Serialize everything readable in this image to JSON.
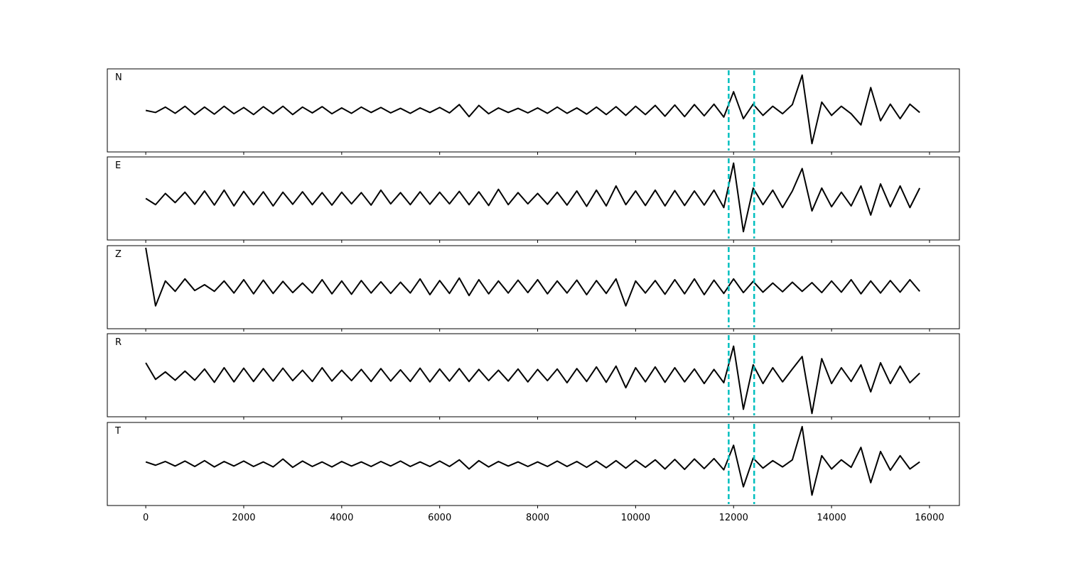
{
  "chart_data": {
    "type": "line",
    "layout": "stacked",
    "x": [
      0,
      200,
      400,
      600,
      800,
      1000,
      1200,
      1400,
      1600,
      1800,
      2000,
      2200,
      2400,
      2600,
      2800,
      3000,
      3200,
      3400,
      3600,
      3800,
      4000,
      4200,
      4400,
      4600,
      4800,
      5000,
      5200,
      5400,
      5600,
      5800,
      6000,
      6200,
      6400,
      6600,
      6800,
      7000,
      7200,
      7400,
      7600,
      7800,
      8000,
      8200,
      8400,
      8600,
      8800,
      9000,
      9200,
      9400,
      9600,
      9800,
      10000,
      10200,
      10400,
      10600,
      10800,
      11000,
      11200,
      11400,
      11600,
      11800,
      12000,
      12200,
      12400,
      12600,
      12800,
      13000,
      13200,
      13400,
      13600,
      13800,
      14000,
      14200,
      14400,
      14600,
      14800,
      15000,
      15200,
      15400,
      15600,
      15800
    ],
    "xlim": [
      -785,
      16610
    ],
    "xticks": [
      0,
      2000,
      4000,
      6000,
      8000,
      10000,
      12000,
      14000,
      16000
    ],
    "ylim": [
      -1,
      1
    ],
    "vlines": {
      "values": [
        11900,
        12420
      ],
      "color": "#00bfbf"
    },
    "series": [
      {
        "name": "N",
        "color": "#000000",
        "values": [
          0.0,
          -0.05,
          0.08,
          -0.07,
          0.1,
          -0.1,
          0.08,
          -0.09,
          0.1,
          -0.08,
          0.07,
          -0.1,
          0.09,
          -0.08,
          0.1,
          -0.1,
          0.08,
          -0.06,
          0.09,
          -0.08,
          0.06,
          -0.07,
          0.08,
          -0.05,
          0.07,
          -0.06,
          0.05,
          -0.07,
          0.06,
          -0.05,
          0.07,
          -0.06,
          0.14,
          -0.15,
          0.12,
          -0.08,
          0.06,
          -0.05,
          0.05,
          -0.06,
          0.06,
          -0.07,
          0.08,
          -0.07,
          0.06,
          -0.09,
          0.08,
          -0.1,
          0.09,
          -0.12,
          0.1,
          -0.1,
          0.12,
          -0.14,
          0.13,
          -0.15,
          0.14,
          -0.13,
          0.15,
          -0.16,
          0.45,
          -0.2,
          0.15,
          -0.12,
          0.1,
          -0.08,
          0.14,
          0.85,
          -0.8,
          0.2,
          -0.12,
          0.1,
          -0.08,
          -0.35,
          0.55,
          -0.25,
          0.15,
          -0.2,
          0.15,
          -0.05
        ]
      },
      {
        "name": "E",
        "color": "#000000",
        "values": [
          0.0,
          -0.15,
          0.12,
          -0.1,
          0.15,
          -0.14,
          0.18,
          -0.16,
          0.2,
          -0.18,
          0.17,
          -0.15,
          0.16,
          -0.18,
          0.15,
          -0.14,
          0.16,
          -0.15,
          0.14,
          -0.16,
          0.15,
          -0.13,
          0.14,
          -0.16,
          0.2,
          -0.13,
          0.14,
          -0.15,
          0.16,
          -0.14,
          0.15,
          -0.13,
          0.17,
          -0.15,
          0.16,
          -0.17,
          0.22,
          -0.15,
          0.14,
          -0.13,
          0.12,
          -0.14,
          0.15,
          -0.16,
          0.18,
          -0.19,
          0.2,
          -0.18,
          0.3,
          -0.15,
          0.18,
          -0.17,
          0.2,
          -0.18,
          0.19,
          -0.17,
          0.18,
          -0.16,
          0.2,
          -0.22,
          0.85,
          -0.8,
          0.25,
          -0.15,
          0.2,
          -0.22,
          0.18,
          0.72,
          -0.3,
          0.25,
          -0.2,
          0.15,
          -0.18,
          0.3,
          -0.4,
          0.35,
          -0.2,
          0.3,
          -0.22,
          0.25
        ]
      },
      {
        "name": "Z",
        "color": "#000000",
        "values": [
          0.95,
          -0.45,
          0.15,
          -0.1,
          0.2,
          -0.08,
          0.06,
          -0.1,
          0.15,
          -0.14,
          0.18,
          -0.16,
          0.17,
          -0.15,
          0.14,
          -0.13,
          0.1,
          -0.14,
          0.18,
          -0.16,
          0.15,
          -0.17,
          0.16,
          -0.14,
          0.13,
          -0.15,
          0.12,
          -0.14,
          0.2,
          -0.18,
          0.16,
          -0.15,
          0.22,
          -0.2,
          0.18,
          -0.16,
          0.15,
          -0.14,
          0.17,
          -0.13,
          0.18,
          -0.16,
          0.15,
          -0.14,
          0.17,
          -0.18,
          0.16,
          -0.15,
          0.2,
          -0.45,
          0.15,
          -0.14,
          0.16,
          -0.17,
          0.18,
          -0.16,
          0.2,
          -0.18,
          0.17,
          -0.15,
          0.2,
          -0.13,
          0.14,
          -0.12,
          0.1,
          -0.11,
          0.12,
          -0.1,
          0.11,
          -0.13,
          0.15,
          -0.12,
          0.18,
          -0.16,
          0.15,
          -0.14,
          0.16,
          -0.12,
          0.18,
          -0.1
        ]
      },
      {
        "name": "R",
        "color": "#000000",
        "values": [
          0.3,
          -0.1,
          0.08,
          -0.12,
          0.1,
          -0.12,
          0.15,
          -0.17,
          0.18,
          -0.16,
          0.17,
          -0.15,
          0.16,
          -0.14,
          0.17,
          -0.13,
          0.12,
          -0.15,
          0.18,
          -0.14,
          0.12,
          -0.13,
          0.14,
          -0.15,
          0.16,
          -0.14,
          0.13,
          -0.15,
          0.17,
          -0.16,
          0.15,
          -0.14,
          0.16,
          -0.15,
          0.14,
          -0.13,
          0.12,
          -0.14,
          0.15,
          -0.16,
          0.14,
          -0.13,
          0.15,
          -0.18,
          0.16,
          -0.15,
          0.2,
          -0.17,
          0.22,
          -0.3,
          0.18,
          -0.16,
          0.2,
          -0.17,
          0.18,
          -0.16,
          0.15,
          -0.2,
          0.14,
          -0.18,
          0.7,
          -0.82,
          0.25,
          -0.2,
          0.18,
          -0.16,
          0.15,
          0.45,
          -0.92,
          0.4,
          -0.2,
          0.18,
          -0.15,
          0.25,
          -0.4,
          0.3,
          -0.2,
          0.22,
          -0.18,
          0.05
        ]
      },
      {
        "name": "T",
        "color": "#000000",
        "values": [
          0.05,
          -0.03,
          0.06,
          -0.05,
          0.07,
          -0.06,
          0.08,
          -0.07,
          0.06,
          -0.05,
          0.07,
          -0.06,
          0.05,
          -0.07,
          0.12,
          -0.08,
          0.07,
          -0.06,
          0.05,
          -0.07,
          0.06,
          -0.05,
          0.05,
          -0.06,
          0.06,
          -0.05,
          0.07,
          -0.06,
          0.05,
          -0.06,
          0.07,
          -0.06,
          0.1,
          -0.12,
          0.08,
          -0.07,
          0.06,
          -0.05,
          0.05,
          -0.06,
          0.05,
          -0.06,
          0.07,
          -0.06,
          0.06,
          -0.08,
          0.07,
          -0.09,
          0.08,
          -0.1,
          0.09,
          -0.08,
          0.1,
          -0.12,
          0.11,
          -0.13,
          0.12,
          -0.11,
          0.13,
          -0.14,
          0.45,
          -0.55,
          0.14,
          -0.1,
          0.08,
          -0.07,
          0.1,
          0.9,
          -0.75,
          0.2,
          -0.12,
          0.1,
          -0.08,
          0.4,
          -0.45,
          0.3,
          -0.15,
          0.2,
          -0.12,
          0.05
        ]
      }
    ]
  }
}
